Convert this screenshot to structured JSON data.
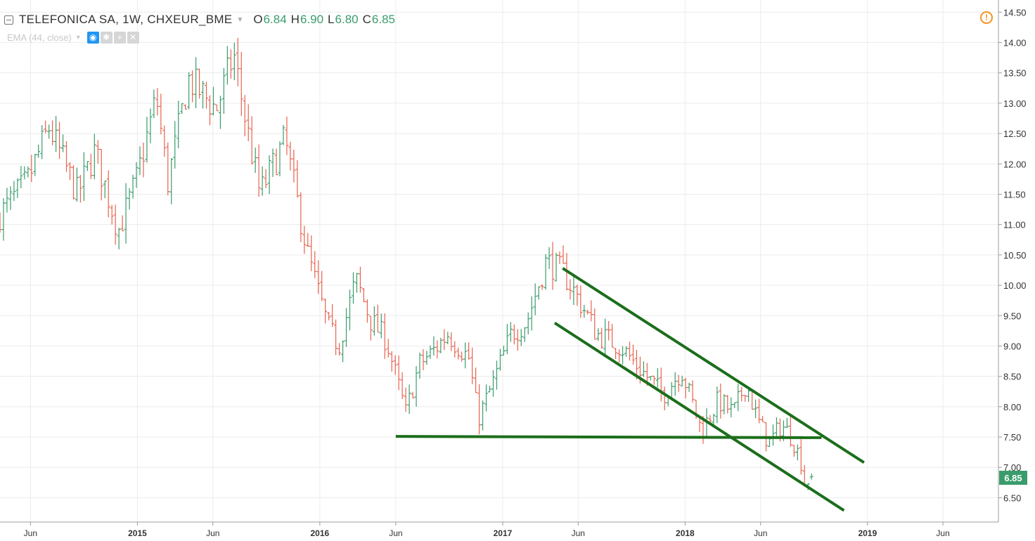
{
  "legend": {
    "symbol": "TELEFONICA SA, 1W, CHXEUR_BME",
    "open_label": "O",
    "open": "6.84",
    "high_label": "H",
    "high": "6.90",
    "low_label": "L",
    "low": "6.80",
    "close_label": "C",
    "close": "6.85"
  },
  "indicator": {
    "label": "EMA (44, close)"
  },
  "icons": [
    "collapse-icon",
    "dropdown-caret-icon",
    "eye-icon",
    "gear-icon",
    "plus-icon",
    "close-icon",
    "alert-icon"
  ],
  "colors": {
    "up": "#3a9c6c",
    "down": "#e8624f",
    "drawing": "#1b6e1b",
    "price_label_bg": "#3a9c6c"
  },
  "chart_data": {
    "type": "ohlc",
    "timeframe": "1W",
    "y_axis": {
      "side": "right",
      "ticks": [
        "6.50",
        "7.00",
        "7.50",
        "8.00",
        "8.50",
        "9.00",
        "9.50",
        "10.00",
        "10.50",
        "11.00",
        "11.50",
        "12.00",
        "12.50",
        "13.00",
        "13.50",
        "14.00",
        "14.50"
      ],
      "range": [
        6.1,
        14.7
      ]
    },
    "x_axis": {
      "ticks": [
        {
          "date": "2014-06-01",
          "label": "Jun",
          "bold": false
        },
        {
          "date": "2015-01-01",
          "label": "2015",
          "bold": true
        },
        {
          "date": "2015-06-01",
          "label": "Jun",
          "bold": false
        },
        {
          "date": "2016-01-01",
          "label": "2016",
          "bold": true
        },
        {
          "date": "2016-06-01",
          "label": "Jun",
          "bold": false
        },
        {
          "date": "2017-01-01",
          "label": "2017",
          "bold": true
        },
        {
          "date": "2017-06-01",
          "label": "Jun",
          "bold": false
        },
        {
          "date": "2018-01-01",
          "label": "2018",
          "bold": true
        },
        {
          "date": "2018-06-01",
          "label": "Jun",
          "bold": false
        },
        {
          "date": "2019-01-01",
          "label": "2019",
          "bold": true
        },
        {
          "date": "2019-06-01",
          "label": "Jun",
          "bold": false
        }
      ],
      "range": [
        "2014-04-01",
        "2019-09-20"
      ]
    },
    "grid": true,
    "last_price": "6.85",
    "anchors": [
      [
        "2014-04-01",
        11.1
      ],
      [
        "2014-06-01",
        11.7
      ],
      [
        "2014-07-15",
        12.6
      ],
      [
        "2014-09-10",
        11.5
      ],
      [
        "2014-10-15",
        12.2
      ],
      [
        "2014-12-01",
        10.9
      ],
      [
        "2015-01-05",
        11.7
      ],
      [
        "2015-02-15",
        13.1
      ],
      [
        "2015-03-10",
        11.7
      ],
      [
        "2015-04-20",
        13.4
      ],
      [
        "2015-06-15",
        12.9
      ],
      [
        "2015-07-20",
        13.8
      ],
      [
        "2015-08-15",
        12.6
      ],
      [
        "2015-09-10",
        11.5
      ],
      [
        "2015-10-30",
        12.4
      ],
      [
        "2015-12-15",
        10.5
      ],
      [
        "2016-01-25",
        9.3
      ],
      [
        "2016-02-15",
        9.0
      ],
      [
        "2016-03-20",
        10.1
      ],
      [
        "2016-04-20",
        9.4
      ],
      [
        "2016-05-20",
        9.1
      ],
      [
        "2016-06-28",
        7.9
      ],
      [
        "2016-07-25",
        8.7
      ],
      [
        "2016-08-20",
        8.9
      ],
      [
        "2016-09-20",
        9.2
      ],
      [
        "2016-11-01",
        8.8
      ],
      [
        "2016-11-20",
        7.8
      ],
      [
        "2016-12-20",
        8.4
      ],
      [
        "2017-01-25",
        9.2
      ],
      [
        "2017-02-25",
        9.4
      ],
      [
        "2017-04-05",
        10.4
      ],
      [
        "2017-05-10",
        10.2
      ],
      [
        "2017-06-20",
        9.6
      ],
      [
        "2017-07-15",
        9.2
      ],
      [
        "2017-09-01",
        9.0
      ],
      [
        "2017-10-01",
        8.7
      ],
      [
        "2017-11-25",
        8.2
      ],
      [
        "2018-01-01",
        8.6
      ],
      [
        "2018-02-10",
        7.6
      ],
      [
        "2018-03-15",
        8.1
      ],
      [
        "2018-04-15",
        7.9
      ],
      [
        "2018-05-10",
        8.4
      ],
      [
        "2018-06-01",
        7.8
      ],
      [
        "2018-06-25",
        7.4
      ],
      [
        "2018-07-20",
        7.7
      ],
      [
        "2018-08-10",
        7.5
      ],
      [
        "2018-08-28",
        7.1
      ],
      [
        "2018-09-05",
        6.7
      ],
      [
        "2018-09-15",
        6.85
      ]
    ],
    "trendlines": [
      {
        "from": {
          "date": "2016-06-01",
          "price": 7.51
        },
        "to": {
          "date": "2018-10-01",
          "price": 7.49
        }
      },
      {
        "from": {
          "date": "2017-05-01",
          "price": 10.28
        },
        "to": {
          "date": "2018-12-25",
          "price": 7.08
        }
      },
      {
        "from": {
          "date": "2017-04-15",
          "price": 9.38
        },
        "to": {
          "date": "2018-11-15",
          "price": 6.29
        }
      }
    ]
  }
}
